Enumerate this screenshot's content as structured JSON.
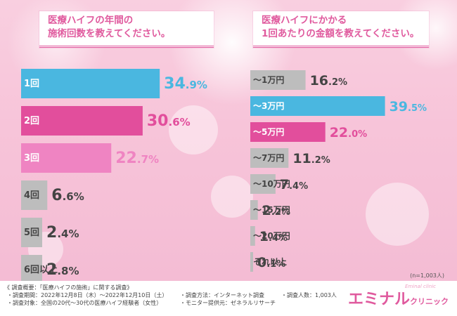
{
  "titles": {
    "left_line1": "医療ハイフの年間の",
    "left_line2": "施術回数を教えてください。",
    "right_line1": "医療ハイフにかかる",
    "right_line2": "1回あたりの金額を教えてください。"
  },
  "chart_data": [
    {
      "type": "bar",
      "orientation": "horizontal",
      "title": "医療ハイフの年間の施術回数を教えてください。",
      "unit": "%",
      "categories": [
        "1回",
        "2回",
        "3回",
        "4回",
        "5回",
        "6回以上"
      ],
      "values": [
        34.9,
        30.6,
        22.7,
        6.6,
        2.4,
        2.8
      ],
      "colors": [
        "#4ab7e0",
        "#e24e9c",
        "#ef84c2",
        "#bdbdbd",
        "#bdbdbd",
        "#bdbdbd"
      ],
      "label_colors": [
        "#ffffff",
        "#ffffff",
        "#ffffff",
        "#444444",
        "#444444",
        "#444444"
      ],
      "value_colors": [
        "#4ab7e0",
        "#e24e9c",
        "#ef84c2",
        "#444444",
        "#444444",
        "#444444"
      ]
    },
    {
      "type": "bar",
      "orientation": "horizontal",
      "title": "医療ハイフにかかる1回あたりの金額を教えてください。",
      "unit": "%",
      "categories": [
        "〜1万円",
        "〜3万円",
        "〜5万円",
        "〜7万円",
        "〜10万円",
        "〜15万円",
        "〜20万円",
        "それ以上"
      ],
      "values": [
        16.2,
        39.5,
        22.0,
        11.2,
        7.4,
        2.2,
        1.4,
        0.1
      ],
      "colors": [
        "#bdbdbd",
        "#4ab7e0",
        "#e24e9c",
        "#bdbdbd",
        "#bdbdbd",
        "#bdbdbd",
        "#bdbdbd",
        "#bdbdbd"
      ],
      "label_colors": [
        "#444444",
        "#ffffff",
        "#ffffff",
        "#444444",
        "#444444",
        "#444444",
        "#444444",
        "#444444"
      ],
      "value_colors": [
        "#444444",
        "#4ab7e0",
        "#e24e9c",
        "#444444",
        "#444444",
        "#444444",
        "#444444",
        "#444444"
      ]
    }
  ],
  "sample_size": "(n=1,003人)",
  "footer": {
    "summary": "《 調査概要：「医療ハイフの施術」に関する調査》",
    "period": "・調査期間：2022年12月8日（木）〜2022年12月10日（土）",
    "target": "・調査対象：全国の20代〜30代の医療ハイフ経験者（女性）",
    "method": "・調査方法：インターネット調査",
    "provider": "・モニター提供元：ゼネラルリサーチ",
    "count": "・調査人数：1,003人"
  },
  "brand": {
    "main": "エミナル",
    "sub": "クリニック",
    "tagline": "Eminal clinic"
  }
}
